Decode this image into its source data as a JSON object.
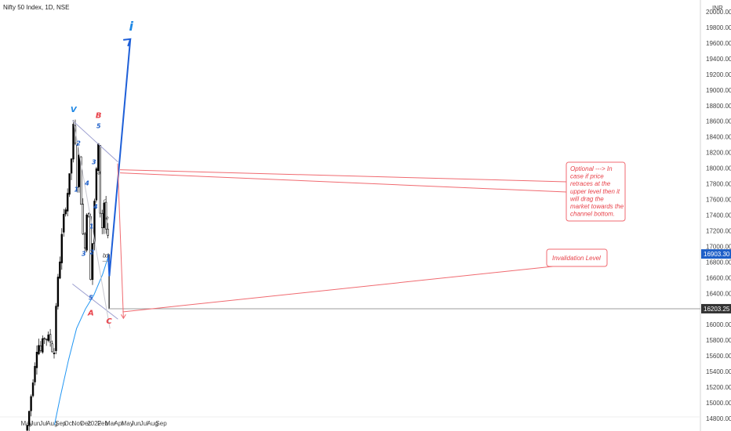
{
  "header": {
    "symbol_label": "Nifty 50 Index, 1D, NSE"
  },
  "chart_data": {
    "type": "candlestick",
    "currency": "INR",
    "x_ticks": [
      "May",
      "Jun",
      "Jul",
      "Aug",
      "Sep",
      "Oct",
      "Nov",
      "Dec",
      "2022",
      "Feb",
      "Mar",
      "Apr",
      "May",
      "Jun",
      "Jul",
      "Aug",
      "Sep"
    ],
    "y_ticks": [
      14800,
      15000,
      15200,
      15400,
      15600,
      15800,
      16000,
      16200,
      16400,
      16600,
      16800,
      17000,
      17200,
      17400,
      17600,
      17800,
      18000,
      18200,
      18400,
      18600,
      18800,
      19000,
      19200,
      19400,
      19600,
      19800,
      20000
    ],
    "y_range": [
      14700,
      20050
    ],
    "price_labels": {
      "last": "16903.30",
      "level": "16203.25"
    },
    "price_values": {
      "last": 16903.3,
      "level": 16203.25
    },
    "wave_labels": [
      {
        "text": "V",
        "color": "#1e88e5",
        "size": "large",
        "date": "2021-10-18",
        "price": 18720
      },
      {
        "text": "1",
        "color": "#1e5fc8",
        "size": "small",
        "date": "2021-10-28",
        "price": 17700
      },
      {
        "text": "2",
        "color": "#1e5fc8",
        "size": "small",
        "date": "2021-11-05",
        "price": 18290
      },
      {
        "text": "3",
        "color": "#1e5fc8",
        "size": "small",
        "date": "2021-11-24",
        "price": 16880
      },
      {
        "text": "4",
        "color": "#1e5fc8",
        "size": "small",
        "date": "2021-12-06",
        "price": 17780
      },
      {
        "text": "5",
        "color": "#1e5fc8",
        "size": "small",
        "date": "2021-12-20",
        "price": 16320
      },
      {
        "text": "A",
        "color": "#e8424a",
        "size": "large",
        "date": "2021-12-20",
        "price": 16120
      },
      {
        "text": "1",
        "color": "#1e5fc8",
        "size": "small",
        "date": "2021-12-22",
        "price": 17230
      },
      {
        "text": "2",
        "color": "#1e5fc8",
        "size": "small",
        "date": "2021-12-24",
        "price": 16900
      },
      {
        "text": "3",
        "color": "#1e5fc8",
        "size": "small",
        "date": "2021-12-31",
        "price": 18050
      },
      {
        "text": "4",
        "color": "#1e5fc8",
        "size": "small",
        "date": "2022-01-06",
        "price": 17480
      },
      {
        "text": "5",
        "color": "#1e5fc8",
        "size": "small",
        "date": "2022-01-17",
        "price": 18510
      },
      {
        "text": "B",
        "color": "#e8424a",
        "size": "large",
        "date": "2022-01-17",
        "price": 18640
      },
      {
        "text": "a",
        "color": "#333333",
        "size": "tiny",
        "date": "2022-01-19",
        "price": 17920
      },
      {
        "text": "b",
        "color": "#333333",
        "size": "tiny",
        "date": "2022-02-07",
        "price": 16860
      },
      {
        "text": "c",
        "color": "#333333",
        "size": "tiny",
        "date": "2022-02-08",
        "price": 17560
      },
      {
        "text": "d",
        "color": "#333333",
        "size": "tiny",
        "date": "2022-02-16",
        "price": 16860
      },
      {
        "text": "e",
        "color": "#333333",
        "size": "tiny",
        "date": "2022-02-17",
        "price": 17340
      },
      {
        "text": "C",
        "color": "#e8424a",
        "size": "large",
        "date": "2022-02-24",
        "price": 16010
      },
      {
        "text": "i",
        "color": "#1e88e5",
        "size": "large",
        "date": "2022-05-15",
        "price": 19760
      }
    ],
    "annotations": [
      {
        "text": [
          "Optional ---> In",
          "case if price",
          "retraces at the",
          "upper level then it",
          "will drag the",
          "market towards the",
          "channel bottom."
        ]
      },
      {
        "text": [
          "Invalidation Level"
        ]
      }
    ],
    "channel": {
      "upper": [
        {
          "date": "2021-10-14",
          "price": 18610
        },
        {
          "date": "2022-03-28",
          "price": 18080
        }
      ],
      "lower": [
        {
          "date": "2021-10-14",
          "price": 16520
        },
        {
          "date": "2022-03-28",
          "price": 16070
        }
      ]
    },
    "moving_average": [
      {
        "date": "2021-08-10",
        "price": 14720
      },
      {
        "date": "2021-08-30",
        "price": 15060
      },
      {
        "date": "2021-09-30",
        "price": 15550
      },
      {
        "date": "2021-10-29",
        "price": 15950
      },
      {
        "date": "2021-11-30",
        "price": 16200
      },
      {
        "date": "2021-12-31",
        "price": 16380
      },
      {
        "date": "2022-01-31",
        "price": 16640
      },
      {
        "date": "2022-02-23",
        "price": 16890
      }
    ],
    "projection": {
      "price_path": [
        {
          "date": "2022-02-21",
          "price": 16900
        },
        {
          "date": "2022-02-25",
          "price": 16620
        },
        {
          "date": "2022-05-12",
          "price": 19650
        }
      ],
      "alt_path": [
        {
          "date": "2022-03-27",
          "price": 18060
        },
        {
          "date": "2022-04-17",
          "price": 16080
        }
      ]
    }
  }
}
